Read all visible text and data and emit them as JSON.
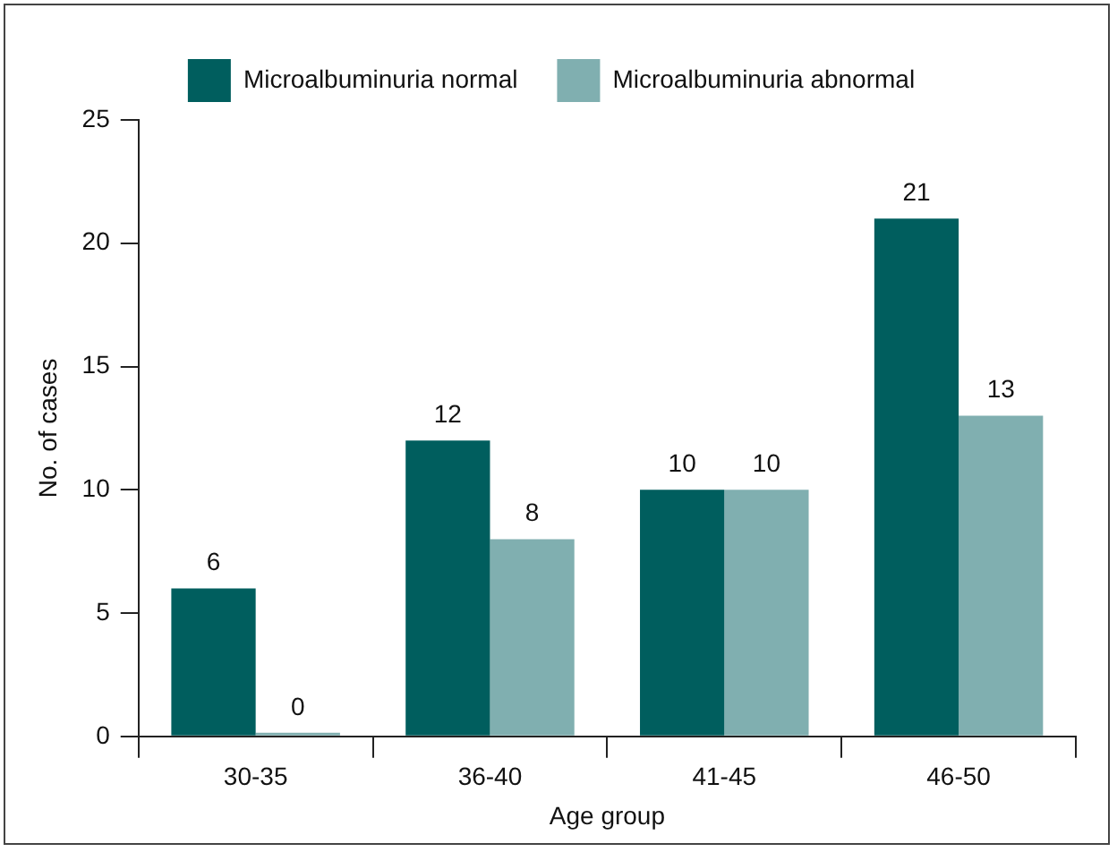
{
  "chart_data": {
    "type": "bar",
    "xlabel": "Age group",
    "ylabel": "No. of cases",
    "categories": [
      "30-35",
      "36-40",
      "41-45",
      "46-50"
    ],
    "series": [
      {
        "name": "Microalbuminuria normal",
        "color": "#005e5e",
        "values": [
          6,
          12,
          10,
          21
        ]
      },
      {
        "name": "Microalbuminuria abnormal",
        "color": "#80afb0",
        "values": [
          0,
          8,
          10,
          13
        ]
      }
    ],
    "ylim": [
      0,
      25
    ],
    "yticks": [
      0,
      5,
      10,
      15,
      20,
      25
    ],
    "grid": false,
    "legend": "top",
    "data_labels": true
  }
}
